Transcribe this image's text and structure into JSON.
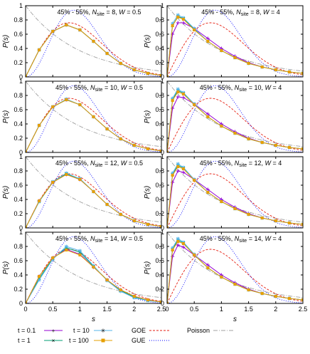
{
  "xlabel": "s",
  "ylabel": "P(s)",
  "xticks": [
    "0",
    "0.5",
    "1",
    "1.5",
    "2",
    "2.5"
  ],
  "yticks": [
    "0",
    "0.2",
    "0.4",
    "0.6",
    "0.8",
    "1"
  ],
  "legend": {
    "t01": "t = 0.1",
    "t1": "t = 1",
    "t10": "t = 10",
    "t100": "t = 100",
    "goe": "GOE",
    "gue": "GUE",
    "poisson": "Poisson"
  },
  "colors": {
    "t01": "#9400d3",
    "t1": "#009e73",
    "t10": "#56b4e9",
    "t100": "#e69f00",
    "goe": "#e51e10",
    "gue": "#0000ff",
    "poisson": "#a0a0a0"
  },
  "chart_data": [
    {
      "type": "line",
      "title": "45% - 55%, N_site = 8, W = 0.5",
      "xlabel": "s",
      "ylabel": "P(s)",
      "xlim": [
        0,
        2.5
      ],
      "ylim": [
        0,
        1.0
      ],
      "grid": false,
      "x": [
        0,
        0.25,
        0.5,
        0.75,
        1.0,
        1.25,
        1.5,
        1.75,
        2.0,
        2.25,
        2.5
      ],
      "series": [
        {
          "name": "t = 0.1",
          "values": [
            0,
            0.38,
            0.64,
            0.73,
            0.66,
            0.5,
            0.33,
            0.19,
            0.1,
            0.05,
            0.02
          ]
        },
        {
          "name": "t = 1",
          "values": [
            0,
            0.38,
            0.64,
            0.73,
            0.66,
            0.5,
            0.33,
            0.19,
            0.1,
            0.05,
            0.02
          ]
        },
        {
          "name": "t = 10",
          "values": [
            0,
            0.38,
            0.64,
            0.73,
            0.66,
            0.5,
            0.33,
            0.19,
            0.1,
            0.05,
            0.02
          ]
        },
        {
          "name": "t = 100",
          "values": [
            0,
            0.38,
            0.64,
            0.73,
            0.66,
            0.5,
            0.33,
            0.19,
            0.1,
            0.05,
            0.02
          ]
        }
      ]
    },
    {
      "type": "line",
      "title": "45% - 55%, N_site = 8, W = 4",
      "xlabel": "s",
      "ylabel": "P(s)",
      "xlim": [
        0,
        2.5
      ],
      "ylim": [
        0,
        1.0
      ],
      "grid": false,
      "x": [
        0,
        0.1,
        0.2,
        0.3,
        0.5,
        0.75,
        1.0,
        1.25,
        1.5,
        1.75,
        2.0,
        2.25,
        2.5
      ],
      "series": [
        {
          "name": "t = 0.1",
          "values": [
            0,
            0.6,
            0.76,
            0.76,
            0.68,
            0.54,
            0.4,
            0.29,
            0.2,
            0.14,
            0.1,
            0.07,
            0.05
          ]
        },
        {
          "name": "t = 1",
          "values": [
            0,
            0.72,
            0.85,
            0.82,
            0.67,
            0.5,
            0.37,
            0.27,
            0.19,
            0.14,
            0.1,
            0.07,
            0.05
          ]
        },
        {
          "name": "t = 10",
          "values": [
            0,
            0.75,
            0.87,
            0.83,
            0.68,
            0.5,
            0.37,
            0.27,
            0.19,
            0.14,
            0.1,
            0.07,
            0.05
          ]
        },
        {
          "name": "t = 100",
          "values": [
            0,
            0.72,
            0.84,
            0.81,
            0.66,
            0.5,
            0.37,
            0.27,
            0.19,
            0.14,
            0.1,
            0.07,
            0.05
          ]
        }
      ]
    },
    {
      "type": "line",
      "title": "45% - 55%, N_site = 10, W = 0.5",
      "xlabel": "s",
      "ylabel": "P(s)",
      "xlim": [
        0,
        2.5
      ],
      "ylim": [
        0,
        1.0
      ],
      "grid": false,
      "x": [
        0,
        0.25,
        0.5,
        0.75,
        1.0,
        1.25,
        1.5,
        1.75,
        2.0,
        2.25,
        2.5
      ],
      "series": [
        {
          "name": "t = 0.1",
          "values": [
            0,
            0.38,
            0.64,
            0.74,
            0.67,
            0.5,
            0.33,
            0.19,
            0.1,
            0.05,
            0.02
          ]
        },
        {
          "name": "t = 1",
          "values": [
            0,
            0.38,
            0.64,
            0.74,
            0.67,
            0.5,
            0.33,
            0.19,
            0.1,
            0.05,
            0.02
          ]
        },
        {
          "name": "t = 10",
          "values": [
            0,
            0.38,
            0.64,
            0.75,
            0.67,
            0.5,
            0.33,
            0.19,
            0.1,
            0.05,
            0.02
          ]
        },
        {
          "name": "t = 100",
          "values": [
            0,
            0.38,
            0.64,
            0.74,
            0.67,
            0.5,
            0.33,
            0.19,
            0.1,
            0.05,
            0.02
          ]
        }
      ]
    },
    {
      "type": "line",
      "title": "45% - 55%, N_site = 10, W = 4",
      "xlabel": "s",
      "ylabel": "P(s)",
      "xlim": [
        0,
        2.5
      ],
      "ylim": [
        0,
        1.0
      ],
      "grid": false,
      "x": [
        0,
        0.1,
        0.2,
        0.3,
        0.5,
        0.75,
        1.0,
        1.25,
        1.5,
        1.75,
        2.0,
        2.25,
        2.5
      ],
      "series": [
        {
          "name": "t = 0.1",
          "values": [
            0,
            0.62,
            0.78,
            0.77,
            0.68,
            0.54,
            0.4,
            0.29,
            0.2,
            0.14,
            0.1,
            0.07,
            0.05
          ]
        },
        {
          "name": "t = 1",
          "values": [
            0,
            0.74,
            0.87,
            0.83,
            0.68,
            0.5,
            0.37,
            0.27,
            0.19,
            0.14,
            0.1,
            0.07,
            0.05
          ]
        },
        {
          "name": "t = 10",
          "values": [
            0,
            0.76,
            0.89,
            0.84,
            0.68,
            0.5,
            0.37,
            0.27,
            0.19,
            0.14,
            0.1,
            0.07,
            0.05
          ]
        },
        {
          "name": "t = 100",
          "values": [
            0,
            0.73,
            0.85,
            0.82,
            0.67,
            0.5,
            0.37,
            0.27,
            0.19,
            0.14,
            0.1,
            0.07,
            0.05
          ]
        }
      ]
    },
    {
      "type": "line",
      "title": "45% - 55%, N_site = 12, W = 0.5",
      "xlabel": "s",
      "ylabel": "P(s)",
      "xlim": [
        0,
        2.5
      ],
      "ylim": [
        0,
        1.0
      ],
      "grid": false,
      "x": [
        0,
        0.25,
        0.5,
        0.75,
        1.0,
        1.25,
        1.5,
        1.75,
        2.0,
        2.25,
        2.5
      ],
      "series": [
        {
          "name": "t = 0.1",
          "values": [
            0,
            0.38,
            0.64,
            0.75,
            0.68,
            0.51,
            0.33,
            0.19,
            0.1,
            0.05,
            0.02
          ]
        },
        {
          "name": "t = 1",
          "values": [
            0,
            0.37,
            0.64,
            0.76,
            0.69,
            0.51,
            0.33,
            0.19,
            0.1,
            0.05,
            0.02
          ]
        },
        {
          "name": "t = 10",
          "values": [
            0,
            0.37,
            0.65,
            0.77,
            0.69,
            0.51,
            0.33,
            0.19,
            0.1,
            0.05,
            0.02
          ]
        },
        {
          "name": "t = 100",
          "values": [
            0,
            0.38,
            0.64,
            0.75,
            0.68,
            0.51,
            0.33,
            0.19,
            0.1,
            0.05,
            0.02
          ]
        }
      ]
    },
    {
      "type": "line",
      "title": "45% - 55%, N_site = 12, W = 4",
      "xlabel": "s",
      "ylabel": "P(s)",
      "xlim": [
        0,
        2.5
      ],
      "ylim": [
        0,
        1.0
      ],
      "grid": false,
      "x": [
        0,
        0.1,
        0.2,
        0.3,
        0.5,
        0.75,
        1.0,
        1.25,
        1.5,
        1.75,
        2.0,
        2.25,
        2.5
      ],
      "series": [
        {
          "name": "t = 0.1",
          "values": [
            0,
            0.64,
            0.8,
            0.78,
            0.68,
            0.54,
            0.4,
            0.29,
            0.2,
            0.14,
            0.1,
            0.07,
            0.05
          ]
        },
        {
          "name": "t = 1",
          "values": [
            0,
            0.75,
            0.88,
            0.84,
            0.68,
            0.5,
            0.37,
            0.27,
            0.19,
            0.14,
            0.1,
            0.07,
            0.05
          ]
        },
        {
          "name": "t = 10",
          "values": [
            0,
            0.77,
            0.9,
            0.85,
            0.68,
            0.5,
            0.37,
            0.27,
            0.19,
            0.14,
            0.1,
            0.07,
            0.05
          ]
        },
        {
          "name": "t = 100",
          "values": [
            0,
            0.74,
            0.86,
            0.83,
            0.67,
            0.5,
            0.37,
            0.27,
            0.19,
            0.14,
            0.1,
            0.07,
            0.05
          ]
        }
      ]
    },
    {
      "type": "line",
      "title": "45% - 55%, N_site = 14, W = 0.5",
      "xlabel": "s",
      "ylabel": "P(s)",
      "xlim": [
        0,
        2.5
      ],
      "ylim": [
        0,
        1.0
      ],
      "grid": false,
      "x": [
        0,
        0.25,
        0.5,
        0.75,
        1.0,
        1.25,
        1.5,
        1.75,
        2.0,
        2.25,
        2.5
      ],
      "series": [
        {
          "name": "t = 0.1",
          "values": [
            0,
            0.38,
            0.64,
            0.76,
            0.69,
            0.51,
            0.33,
            0.19,
            0.1,
            0.05,
            0.02
          ]
        },
        {
          "name": "t = 1",
          "values": [
            0,
            0.35,
            0.63,
            0.78,
            0.72,
            0.52,
            0.33,
            0.18,
            0.09,
            0.04,
            0.02
          ]
        },
        {
          "name": "t = 10",
          "values": [
            0,
            0.33,
            0.62,
            0.8,
            0.74,
            0.53,
            0.32,
            0.17,
            0.08,
            0.04,
            0.02
          ]
        },
        {
          "name": "t = 100",
          "values": [
            0,
            0.38,
            0.64,
            0.75,
            0.68,
            0.51,
            0.33,
            0.19,
            0.1,
            0.05,
            0.02
          ]
        }
      ]
    },
    {
      "type": "line",
      "title": "45% - 55%, N_site = 14, W = 4",
      "xlabel": "s",
      "ylabel": "P(s)",
      "xlim": [
        0,
        2.5
      ],
      "ylim": [
        0,
        1.0
      ],
      "grid": false,
      "x": [
        0,
        0.1,
        0.2,
        0.3,
        0.5,
        0.75,
        1.0,
        1.25,
        1.5,
        1.75,
        2.0,
        2.25,
        2.5
      ],
      "series": [
        {
          "name": "t = 0.1",
          "values": [
            0,
            0.66,
            0.82,
            0.79,
            0.68,
            0.54,
            0.4,
            0.29,
            0.2,
            0.14,
            0.1,
            0.07,
            0.05
          ]
        },
        {
          "name": "t = 1",
          "values": [
            0,
            0.76,
            0.89,
            0.85,
            0.68,
            0.5,
            0.37,
            0.27,
            0.19,
            0.14,
            0.1,
            0.07,
            0.05
          ]
        },
        {
          "name": "t = 10",
          "values": [
            0,
            0.78,
            0.91,
            0.86,
            0.69,
            0.5,
            0.37,
            0.27,
            0.19,
            0.14,
            0.1,
            0.07,
            0.05
          ]
        },
        {
          "name": "t = 100",
          "values": [
            0,
            0.75,
            0.87,
            0.84,
            0.68,
            0.5,
            0.37,
            0.27,
            0.19,
            0.14,
            0.1,
            0.07,
            0.05
          ]
        }
      ]
    }
  ],
  "panel_labels": [
    {
      "prefix": "45% - 55%, ",
      "n": "N",
      "sub": "site",
      "mid": " = 8, ",
      "w": "W",
      "end": " = 0.5"
    },
    {
      "prefix": "45% - 55%, ",
      "n": "N",
      "sub": "site",
      "mid": " = 8, ",
      "w": "W",
      "end": " = 4"
    },
    {
      "prefix": "45% - 55%, ",
      "n": "N",
      "sub": "site",
      "mid": " = 10, ",
      "w": "W",
      "end": " = 0.5"
    },
    {
      "prefix": "45% - 55%, ",
      "n": "N",
      "sub": "site",
      "mid": " = 10, ",
      "w": "W",
      "end": " = 4"
    },
    {
      "prefix": "45% - 55%, ",
      "n": "N",
      "sub": "site",
      "mid": " = 12, ",
      "w": "W",
      "end": " = 0.5"
    },
    {
      "prefix": "45% - 55%, ",
      "n": "N",
      "sub": "site",
      "mid": " = 12, ",
      "w": "W",
      "end": " = 4"
    },
    {
      "prefix": "45% - 55%, ",
      "n": "N",
      "sub": "site",
      "mid": " = 14, ",
      "w": "W",
      "end": " = 0.5"
    },
    {
      "prefix": "45% - 55%, ",
      "n": "N",
      "sub": "site",
      "mid": " = 14, ",
      "w": "W",
      "end": " = 4"
    }
  ]
}
